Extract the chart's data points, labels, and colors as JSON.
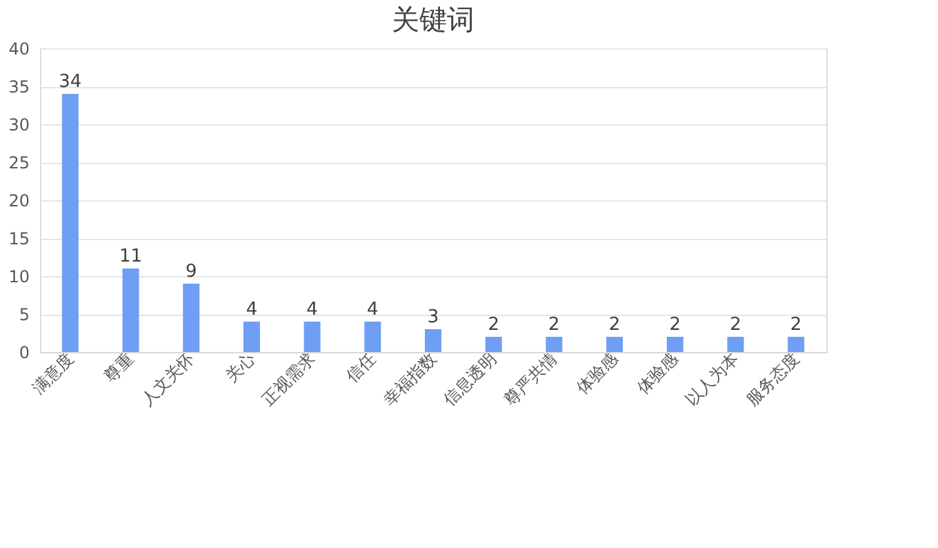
{
  "chart_data": {
    "type": "bar",
    "title": "关键词",
    "categories": [
      "满意度",
      "尊重",
      "人文关怀",
      "关心",
      "正视需求",
      "信任",
      "幸福指数",
      "信息透明",
      "尊严共情",
      "体验感",
      "体验感",
      "以人为本",
      "服务态度"
    ],
    "values": [
      34,
      11,
      9,
      4,
      4,
      4,
      3,
      2,
      2,
      2,
      2,
      2,
      2
    ],
    "color": "#6f9ef5",
    "ylim": [
      0,
      40
    ],
    "yticks": [
      0,
      5,
      10,
      15,
      20,
      25,
      30,
      35,
      40
    ],
    "grid": "y",
    "data_labels": true
  }
}
